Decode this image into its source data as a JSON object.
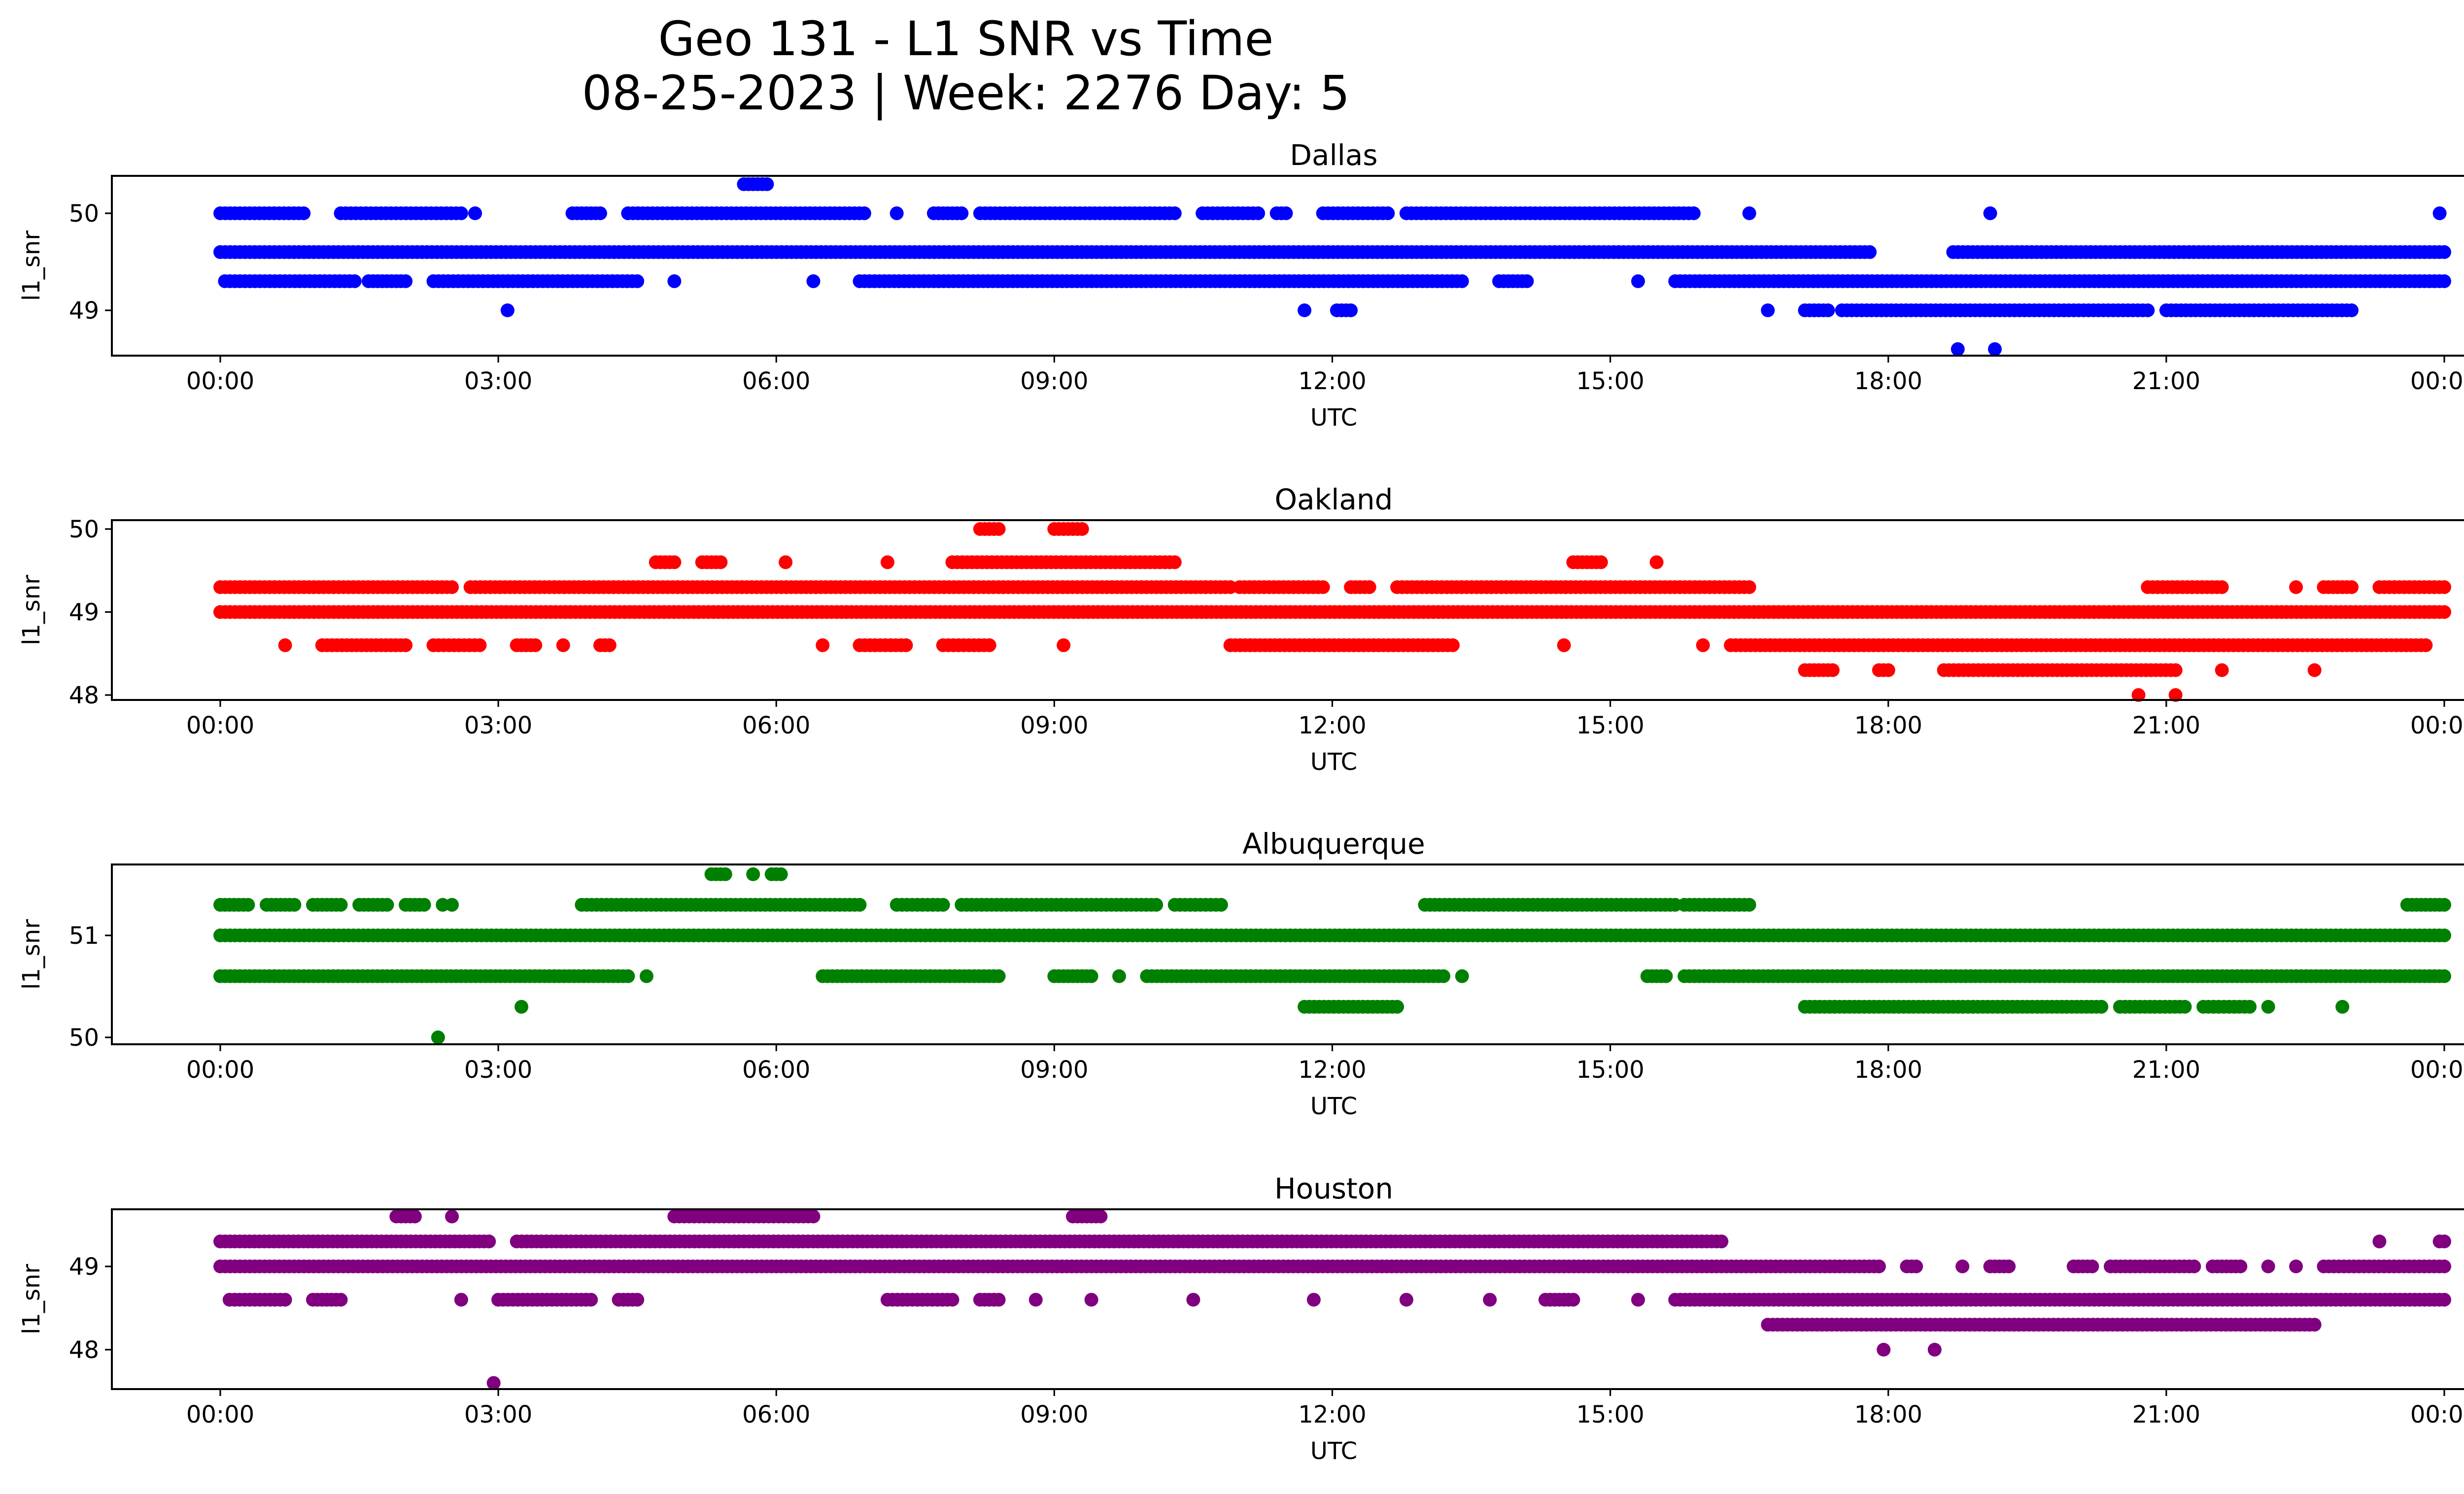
{
  "title_line1": "Geo 131 - L1 SNR vs Time",
  "title_line2": "08-25-2023 | Week: 2276 Day: 5",
  "chart_data": [
    {
      "type": "scatter",
      "title": "Dallas",
      "xlabel": "UTC",
      "ylabel": "l1_snr",
      "color": "#0000ff",
      "xlim": [
        "23:00",
        "00:00 (+1 day 01:10)"
      ],
      "xticks": [
        "00:00",
        "03:00",
        "06:00",
        "09:00",
        "12:00",
        "15:00",
        "18:00",
        "21:00",
        "00:00"
      ],
      "yticks": [
        49,
        50
      ],
      "ylim": [
        48.5,
        50.4
      ],
      "bands": [
        {
          "y": 50.3,
          "segments": [
            [
              5.65,
              5.9
            ]
          ]
        },
        {
          "y": 50.0,
          "segments": [
            [
              0.0,
              0.9
            ],
            [
              1.3,
              2.6
            ],
            [
              2.75,
              2.75
            ],
            [
              3.8,
              4.1
            ],
            [
              4.4,
              6.95
            ],
            [
              7.3,
              7.3
            ],
            [
              7.7,
              8.0
            ],
            [
              8.2,
              10.3
            ],
            [
              10.6,
              11.2
            ],
            [
              11.4,
              11.5
            ],
            [
              11.9,
              12.6
            ],
            [
              12.8,
              15.9
            ],
            [
              16.5,
              16.5
            ],
            [
              19.1,
              19.1
            ],
            [
              23.95,
              23.95
            ]
          ]
        },
        {
          "y": 49.6,
          "segments": [
            [
              0.0,
              17.8
            ],
            [
              18.7,
              24.0
            ]
          ]
        },
        {
          "y": 49.3,
          "segments": [
            [
              0.05,
              1.45
            ],
            [
              1.6,
              2.0
            ],
            [
              2.3,
              4.5
            ],
            [
              4.9,
              4.9
            ],
            [
              6.4,
              6.4
            ],
            [
              6.9,
              13.4
            ],
            [
              13.8,
              14.1
            ],
            [
              15.3,
              15.3
            ],
            [
              15.7,
              24.0
            ]
          ]
        },
        {
          "y": 49.0,
          "segments": [
            [
              3.1,
              3.1
            ],
            [
              11.7,
              11.7
            ],
            [
              12.05,
              12.2
            ],
            [
              16.7,
              16.7
            ],
            [
              17.1,
              17.35
            ],
            [
              17.5,
              20.8
            ],
            [
              21.0,
              23.0
            ]
          ]
        },
        {
          "y": 48.6,
          "segments": [
            [
              18.75,
              18.75
            ],
            [
              19.15,
              19.15
            ]
          ]
        }
      ]
    },
    {
      "type": "scatter",
      "title": "Oakland",
      "xlabel": "UTC",
      "ylabel": "l1_snr",
      "color": "#ff0000",
      "xticks": [
        "00:00",
        "03:00",
        "06:00",
        "09:00",
        "12:00",
        "15:00",
        "18:00",
        "21:00",
        "00:00"
      ],
      "yticks": [
        48,
        49,
        50
      ],
      "ylim": [
        47.9,
        50.1
      ],
      "bands": [
        {
          "y": 50.0,
          "segments": [
            [
              8.2,
              8.4
            ],
            [
              9.0,
              9.3
            ]
          ]
        },
        {
          "y": 49.6,
          "segments": [
            [
              4.7,
              4.9
            ],
            [
              5.2,
              5.4
            ],
            [
              6.1,
              6.1
            ],
            [
              7.2,
              7.2
            ],
            [
              7.9,
              10.3
            ],
            [
              14.6,
              14.9
            ],
            [
              15.5,
              15.5
            ]
          ]
        },
        {
          "y": 49.3,
          "segments": [
            [
              0.0,
              2.5
            ],
            [
              2.7,
              10.9
            ],
            [
              11.0,
              11.9
            ],
            [
              12.2,
              12.4
            ],
            [
              12.7,
              16.5
            ],
            [
              20.8,
              21.6
            ],
            [
              22.4,
              22.4
            ],
            [
              22.7,
              23.0
            ],
            [
              23.3,
              24.0
            ]
          ]
        },
        {
          "y": 49.0,
          "segments": [
            [
              0.0,
              24.0
            ]
          ]
        },
        {
          "y": 48.6,
          "segments": [
            [
              0.7,
              0.7
            ],
            [
              1.1,
              2.0
            ],
            [
              2.3,
              2.8
            ],
            [
              3.2,
              3.4
            ],
            [
              3.7,
              3.7
            ],
            [
              4.1,
              4.2
            ],
            [
              6.5,
              6.5
            ],
            [
              6.9,
              7.4
            ],
            [
              7.8,
              8.3
            ],
            [
              9.1,
              9.1
            ],
            [
              10.9,
              13.3
            ],
            [
              14.5,
              14.5
            ],
            [
              16.0,
              16.0
            ],
            [
              16.3,
              23.8
            ]
          ]
        },
        {
          "y": 48.3,
          "segments": [
            [
              17.1,
              17.4
            ],
            [
              17.9,
              18.0
            ],
            [
              18.6,
              21.1
            ],
            [
              21.6,
              21.6
            ],
            [
              22.6,
              22.6
            ]
          ]
        },
        {
          "y": 48.0,
          "segments": [
            [
              20.7,
              20.7
            ],
            [
              21.1,
              21.1
            ]
          ]
        }
      ]
    },
    {
      "type": "scatter",
      "title": "Albuquerque",
      "xlabel": "UTC",
      "ylabel": "l1_snr",
      "color": "#008000",
      "xticks": [
        "00:00",
        "03:00",
        "06:00",
        "09:00",
        "12:00",
        "15:00",
        "18:00",
        "21:00",
        "00:00"
      ],
      "yticks": [
        50,
        51
      ],
      "ylim": [
        49.95,
        51.65
      ],
      "bands": [
        {
          "y": 51.6,
          "segments": [
            [
              5.3,
              5.45
            ],
            [
              5.75,
              5.75
            ],
            [
              5.95,
              6.05
            ]
          ]
        },
        {
          "y": 51.3,
          "segments": [
            [
              0.0,
              0.3
            ],
            [
              0.5,
              0.8
            ],
            [
              1.0,
              1.3
            ],
            [
              1.5,
              1.8
            ],
            [
              2.0,
              2.2
            ],
            [
              2.5,
              2.5
            ],
            [
              2.4,
              2.4
            ],
            [
              3.9,
              6.9
            ],
            [
              7.3,
              7.8
            ],
            [
              8.0,
              10.1
            ],
            [
              10.3,
              10.8
            ],
            [
              13.0,
              15.7
            ],
            [
              15.8,
              16.5
            ],
            [
              23.6,
              24.0
            ]
          ]
        },
        {
          "y": 51.0,
          "segments": [
            [
              0.0,
              24.0
            ]
          ]
        },
        {
          "y": 50.6,
          "segments": [
            [
              0.0,
              4.4
            ],
            [
              4.6,
              4.6
            ],
            [
              6.5,
              8.4
            ],
            [
              9.0,
              9.4
            ],
            [
              9.7,
              9.7
            ],
            [
              10.0,
              13.2
            ],
            [
              13.4,
              13.4
            ],
            [
              15.4,
              15.6
            ],
            [
              15.8,
              24.0
            ]
          ]
        },
        {
          "y": 50.3,
          "segments": [
            [
              3.25,
              3.25
            ],
            [
              11.7,
              12.7
            ],
            [
              17.1,
              20.3
            ],
            [
              20.5,
              21.2
            ],
            [
              21.4,
              21.9
            ],
            [
              22.1,
              22.1
            ],
            [
              22.9,
              22.9
            ]
          ]
        },
        {
          "y": 50.0,
          "segments": [
            [
              2.35,
              2.35
            ]
          ]
        }
      ]
    },
    {
      "type": "scatter",
      "title": "Houston",
      "xlabel": "UTC",
      "ylabel": "l1_snr",
      "color": "#800080",
      "xticks": [
        "00:00",
        "03:00",
        "06:00",
        "09:00",
        "12:00",
        "15:00",
        "18:00",
        "21:00",
        "00:00"
      ],
      "yticks": [
        48,
        49
      ],
      "ylim": [
        47.55,
        49.7
      ],
      "bands": [
        {
          "y": 49.6,
          "segments": [
            [
              1.9,
              2.1
            ],
            [
              2.5,
              2.5
            ],
            [
              4.9,
              6.4
            ],
            [
              9.2,
              9.5
            ]
          ]
        },
        {
          "y": 49.3,
          "segments": [
            [
              0.0,
              2.9
            ],
            [
              3.2,
              16.2
            ],
            [
              23.3,
              23.3
            ],
            [
              23.95,
              24.0
            ]
          ]
        },
        {
          "y": 49.0,
          "segments": [
            [
              0.0,
              17.9
            ],
            [
              18.2,
              18.3
            ],
            [
              18.8,
              18.8
            ],
            [
              19.1,
              19.3
            ],
            [
              20.0,
              20.2
            ],
            [
              20.4,
              21.3
            ],
            [
              21.5,
              21.8
            ],
            [
              22.1,
              22.1
            ],
            [
              22.4,
              22.4
            ],
            [
              22.7,
              24.0
            ]
          ]
        },
        {
          "y": 48.6,
          "segments": [
            [
              0.1,
              0.7
            ],
            [
              1.0,
              1.3
            ],
            [
              2.6,
              2.6
            ],
            [
              3.0,
              4.0
            ],
            [
              4.3,
              4.5
            ],
            [
              7.2,
              7.9
            ],
            [
              8.2,
              8.4
            ],
            [
              8.8,
              8.8
            ],
            [
              9.4,
              9.4
            ],
            [
              10.5,
              10.5
            ],
            [
              11.8,
              11.8
            ],
            [
              12.8,
              12.8
            ],
            [
              13.7,
              13.7
            ],
            [
              14.3,
              14.6
            ],
            [
              15.3,
              15.3
            ],
            [
              15.7,
              24.0
            ]
          ]
        },
        {
          "y": 48.3,
          "segments": [
            [
              16.7,
              22.6
            ]
          ]
        },
        {
          "y": 48.0,
          "segments": [
            [
              17.95,
              17.95
            ],
            [
              18.5,
              18.5
            ]
          ]
        },
        {
          "y": 47.6,
          "segments": [
            [
              2.95,
              2.95
            ]
          ]
        }
      ]
    }
  ]
}
